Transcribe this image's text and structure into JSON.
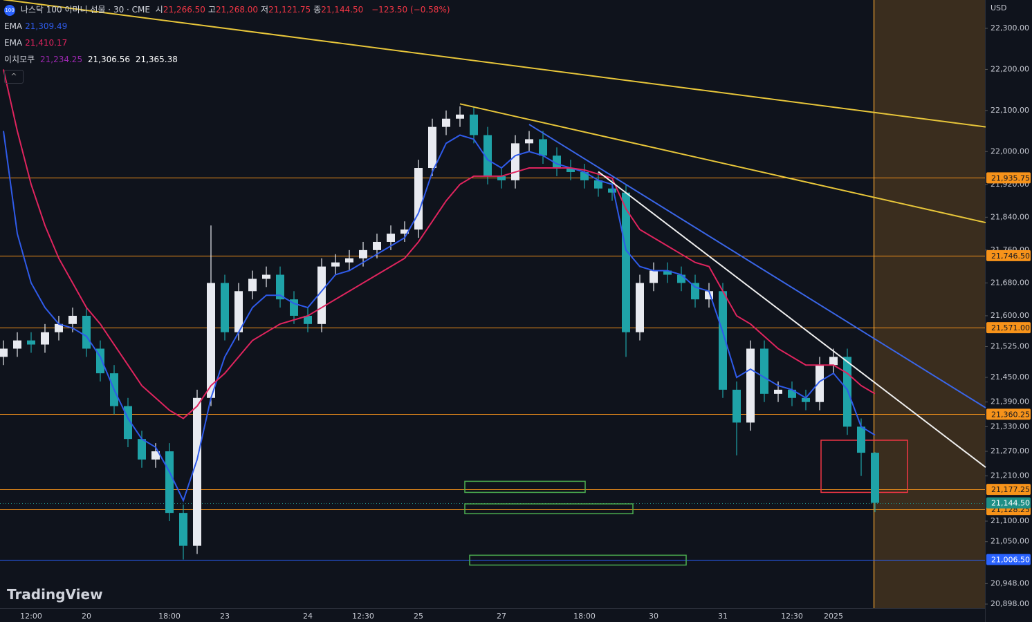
{
  "chart_data": {
    "type": "candlestick",
    "title": "나스닥 100 이미니 선물 · 30 · CME",
    "ohlc_readout": [
      {
        "label": "시",
        "value": "21,266.50"
      },
      {
        "label": "고",
        "value": "21,268.00"
      },
      {
        "label": "저",
        "value": "21,121.75"
      },
      {
        "label": "종",
        "value": "21,144.50"
      }
    ],
    "change": "−123.50 (−0.58%)",
    "currency": "USD",
    "watermark": "TradingView",
    "up_color": "#e8eaf0",
    "down_color": "#1fa3a8",
    "categories": [
      null,
      null,
      "12:00",
      null,
      null,
      null,
      "20",
      null,
      null,
      null,
      null,
      null,
      "18:00",
      null,
      null,
      null,
      "23",
      null,
      null,
      null,
      null,
      null,
      "24",
      null,
      null,
      null,
      "12:30",
      null,
      null,
      null,
      "25",
      null,
      null,
      null,
      null,
      null,
      "27",
      null,
      null,
      null,
      null,
      null,
      "18:00",
      null,
      null,
      null,
      null,
      "30",
      null,
      null,
      null,
      null,
      "31",
      null,
      null,
      null,
      null,
      "12:30",
      null,
      null,
      "2025",
      null,
      null,
      null
    ],
    "open": [
      21500,
      21520,
      21540,
      21530,
      21560,
      21580,
      21600,
      21520,
      21460,
      21380,
      21300,
      21250,
      21270,
      21120,
      21040,
      21400,
      21680,
      21560,
      21660,
      21690,
      21700,
      21640,
      21600,
      21580,
      21720,
      21730,
      21740,
      21760,
      21780,
      21800,
      21810,
      21960,
      22060,
      22080,
      22090,
      22040,
      21940,
      21930,
      22020,
      22030,
      21990,
      21960,
      21950,
      21930,
      21910,
      21900,
      21560,
      21680,
      21710,
      21700,
      21680,
      21640,
      21660,
      21420,
      21340,
      21520,
      21410,
      21420,
      21400,
      21390,
      21480,
      21500,
      21330,
      21266.5
    ],
    "high": [
      21540,
      21560,
      21560,
      21580,
      21600,
      21620,
      21620,
      21540,
      21480,
      21400,
      21320,
      21290,
      21290,
      21140,
      21420,
      21820,
      21700,
      21680,
      21710,
      21720,
      21720,
      21660,
      21620,
      21740,
      21750,
      21760,
      21780,
      21800,
      21820,
      21830,
      21980,
      22080,
      22100,
      22110,
      22110,
      22060,
      21960,
      22040,
      22050,
      22050,
      22010,
      21980,
      21970,
      21950,
      21930,
      21920,
      21700,
      21730,
      21730,
      21720,
      21700,
      21680,
      21680,
      21440,
      21540,
      21540,
      21440,
      21440,
      21420,
      21500,
      21520,
      21520,
      21350,
      21268
    ],
    "low": [
      21480,
      21500,
      21510,
      21510,
      21540,
      21560,
      21500,
      21440,
      21360,
      21280,
      21230,
      21230,
      21100,
      21006.5,
      21020,
      21380,
      21540,
      21540,
      21640,
      21670,
      21620,
      21580,
      21560,
      21560,
      21700,
      21710,
      21720,
      21740,
      21760,
      21780,
      21790,
      21940,
      22040,
      22060,
      22020,
      21920,
      21910,
      21910,
      22000,
      21970,
      21940,
      21930,
      21910,
      21890,
      21880,
      21500,
      21540,
      21660,
      21680,
      21660,
      21620,
      21620,
      21400,
      21260,
      21320,
      21390,
      21390,
      21380,
      21370,
      21370,
      21460,
      21310,
      21210,
      21121.75
    ],
    "close": [
      21520,
      21540,
      21530,
      21560,
      21580,
      21600,
      21520,
      21460,
      21380,
      21300,
      21250,
      21270,
      21120,
      21040,
      21400,
      21680,
      21560,
      21660,
      21690,
      21700,
      21640,
      21600,
      21580,
      21720,
      21730,
      21740,
      21760,
      21780,
      21800,
      21810,
      21960,
      22060,
      22080,
      22090,
      22040,
      21940,
      21930,
      22020,
      22030,
      21990,
      21960,
      21950,
      21930,
      21910,
      21900,
      21560,
      21680,
      21710,
      21700,
      21680,
      21640,
      21660,
      21420,
      21340,
      21520,
      21410,
      21420,
      21400,
      21390,
      21480,
      21500,
      21330,
      21266.5,
      21144.5
    ],
    "series": [
      {
        "name": "EMA",
        "readout": "21,309.49",
        "color": "#2f5bea",
        "values": [
          22050,
          21800,
          21680,
          21620,
          21580,
          21570,
          21550,
          21500,
          21420,
          21350,
          21300,
          21280,
          21220,
          21150,
          21250,
          21400,
          21500,
          21560,
          21620,
          21650,
          21650,
          21630,
          21620,
          21660,
          21700,
          21710,
          21730,
          21750,
          21770,
          21790,
          21850,
          21950,
          22020,
          22040,
          22030,
          21980,
          21960,
          21990,
          22000,
          21990,
          21970,
          21960,
          21950,
          21930,
          21920,
          21760,
          21720,
          21710,
          21710,
          21700,
          21670,
          21660,
          21560,
          21450,
          21470,
          21450,
          21430,
          21420,
          21400,
          21440,
          21460,
          21420,
          21330,
          21309.49
        ]
      },
      {
        "name": "EMA",
        "readout": "21,410.17",
        "color": "#e0245e",
        "values": [
          22200,
          22050,
          21920,
          21820,
          21740,
          21680,
          21620,
          21580,
          21530,
          21480,
          21430,
          21400,
          21370,
          21350,
          21380,
          21430,
          21460,
          21500,
          21540,
          21560,
          21580,
          21590,
          21600,
          21620,
          21640,
          21660,
          21680,
          21700,
          21720,
          21740,
          21780,
          21830,
          21880,
          21920,
          21940,
          21940,
          21940,
          21950,
          21960,
          21960,
          21960,
          21960,
          21955,
          21945,
          21935,
          21860,
          21810,
          21790,
          21770,
          21750,
          21730,
          21720,
          21660,
          21600,
          21580,
          21550,
          21520,
          21500,
          21480,
          21480,
          21480,
          21460,
          21430,
          21410.17
        ]
      }
    ],
    "ichimoku": {
      "name": "이치모쿠",
      "readout": [
        "21,234.25",
        "21,306.56",
        "21,365.38"
      ]
    },
    "levels": [
      {
        "value": 21935.75,
        "label": "21,935.75",
        "color": "#f7931a"
      },
      {
        "value": 21746.5,
        "label": "21,746.50",
        "color": "#f7931a"
      },
      {
        "value": 21571,
        "label": "21,571.00",
        "color": "#f7931a"
      },
      {
        "value": 21360.25,
        "label": "21,360.25",
        "color": "#f7931a"
      },
      {
        "value": 21177.25,
        "label": "21,177.25",
        "color": "#f7931a"
      },
      {
        "value": 21128.25,
        "label": "21,128.25",
        "color": "#f7931a"
      },
      {
        "value": 21006.5,
        "label": "21,006.50",
        "color": "#2962ff"
      }
    ],
    "last_price": {
      "value": 21144.5,
      "label": "21,144.50",
      "color": "#1e8f86"
    },
    "trendlines": [
      {
        "color": "#e8c63a",
        "from": [
          0,
          22370
        ],
        "to": [
          71,
          22060
        ]
      },
      {
        "color": "#e8c63a",
        "from": [
          33,
          22116
        ],
        "to": [
          71,
          21827
        ]
      },
      {
        "color": "#3a66e8",
        "from": [
          38,
          22066
        ],
        "to": [
          71,
          21376
        ]
      },
      {
        "color": "#f0f0f0",
        "from": [
          43,
          21951
        ],
        "to": [
          71,
          21231
        ]
      }
    ],
    "zones": [
      {
        "color": "#4caf50",
        "x": [
          33.35,
          42.05
        ],
        "y": [
          21170,
          21197
        ]
      },
      {
        "color": "#4caf50",
        "x": [
          33.35,
          45.5
        ],
        "y": [
          21118,
          21142
        ]
      },
      {
        "color": "#4caf50",
        "x": [
          33.7,
          49.35
        ],
        "y": [
          20993,
          21017
        ]
      },
      {
        "color": "#f23645",
        "x": [
          59.1,
          65.35
        ],
        "y": [
          21170,
          21297
        ]
      }
    ],
    "ylim": [
      20888,
      22369
    ],
    "yticks": [
      {
        "value": 22300,
        "label": "22,300.00"
      },
      {
        "value": 22200,
        "label": "22,200.00"
      },
      {
        "value": 22100,
        "label": "22,100.00"
      },
      {
        "value": 22000,
        "label": "22,000.00"
      },
      {
        "value": 21920,
        "label": "21,920.00"
      },
      {
        "value": 21840,
        "label": "21,840.00"
      },
      {
        "value": 21760,
        "label": "21,760.00"
      },
      {
        "value": 21680,
        "label": "21,680.00"
      },
      {
        "value": 21600,
        "label": "21,600.00"
      },
      {
        "value": 21525,
        "label": "21,525.00"
      },
      {
        "value": 21450,
        "label": "21,450.00"
      },
      {
        "value": 21390,
        "label": "21,390.00"
      },
      {
        "value": 21330,
        "label": "21,330.00"
      },
      {
        "value": 21270,
        "label": "21,270.00"
      },
      {
        "value": 21210,
        "label": "21,210.00"
      },
      {
        "value": 21100,
        "label": "21,100.00"
      },
      {
        "value": 21050,
        "label": "21,050.00"
      },
      {
        "value": 20948,
        "label": "20,948.00"
      },
      {
        "value": 20898,
        "label": "20,898.00"
      }
    ]
  }
}
